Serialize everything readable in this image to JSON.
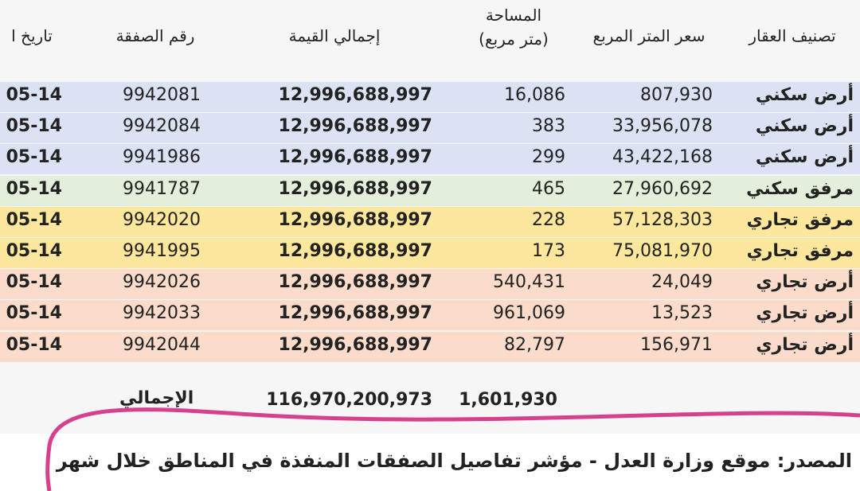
{
  "table": {
    "headers": [
      "تصنيف العقار",
      "سعر المتر المربع",
      "المساحة\n(متر مربع)",
      "إجمالي القيمة",
      "رقم الصفقة",
      "تاريخ ا"
    ],
    "row_colors": [
      "#dbe2f3",
      "#dbe2f3",
      "#dbe2f3",
      "#e3efda",
      "#fde79c",
      "#fde79c",
      "#fbdcca",
      "#fbdcca",
      "#fbdcca"
    ],
    "rows": [
      [
        "أرض سكني",
        "807,930",
        "16,086",
        "12,996,688,997",
        "9942081",
        "05-14"
      ],
      [
        "أرض سكني",
        "33,956,078",
        "383",
        "12,996,688,997",
        "9942084",
        "05-14"
      ],
      [
        "أرض سكني",
        "43,422,168",
        "299",
        "12,996,688,997",
        "9941986",
        "05-14"
      ],
      [
        "مرفق سكني",
        "27,960,692",
        "465",
        "12,996,688,997",
        "9941787",
        "05-14"
      ],
      [
        "مرفق تجاري",
        "57,128,303",
        "228",
        "12,996,688,997",
        "9942020",
        "05-14"
      ],
      [
        "مرفق تجاري",
        "75,081,970",
        "173",
        "12,996,688,997",
        "9941995",
        "05-14"
      ],
      [
        "أرض تجاري",
        "24,049",
        "540,431",
        "12,996,688,997",
        "9942026",
        "05-14"
      ],
      [
        "أرض تجاري",
        "13,523",
        "961,069",
        "12,996,688,997",
        "9942033",
        "05-14"
      ],
      [
        "أرض تجاري",
        "156,971",
        "82,797",
        "12,996,688,997",
        "9942044",
        "05-14"
      ]
    ],
    "total": {
      "area": "1,601,930",
      "value": "116,970,200,973",
      "label": "الإجمالي"
    }
  },
  "source": "المصدر: موقع وزارة العدل - مؤشر تفاصيل الصفقات المنفذة في المناطق خلال شهر"
}
